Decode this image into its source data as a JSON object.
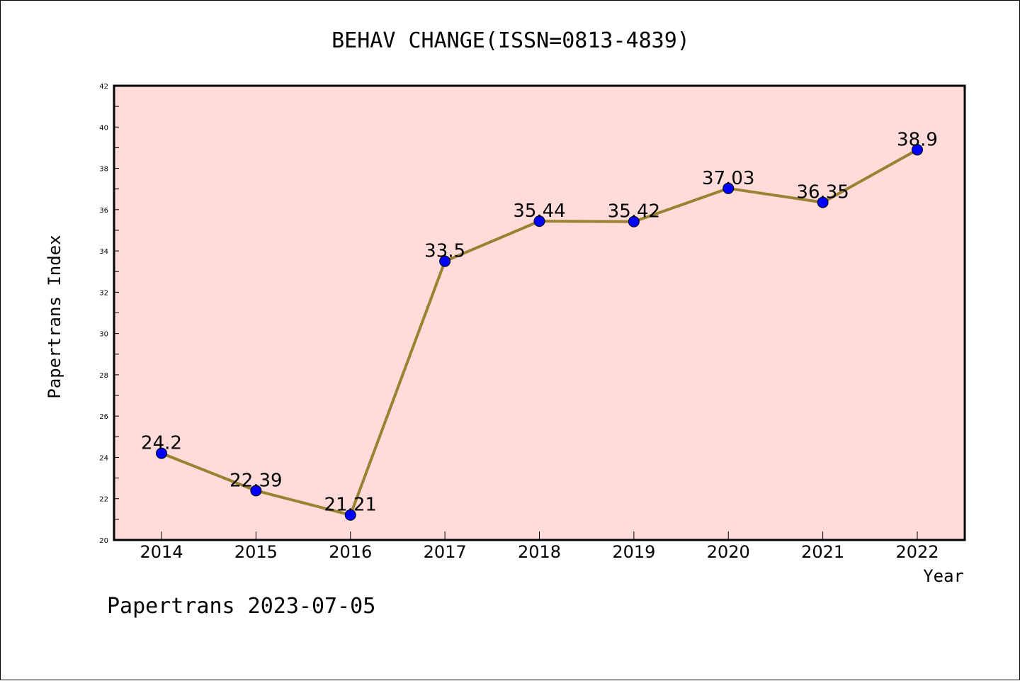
{
  "chart_data": {
    "type": "line",
    "title": "BEHAV CHANGE(ISSN=0813-4839)",
    "xlabel": "Year",
    "ylabel": "Papertrans Index",
    "x": [
      "2014",
      "2015",
      "2016",
      "2017",
      "2018",
      "2019",
      "2020",
      "2021",
      "2022"
    ],
    "series": [
      {
        "values": [
          24.2,
          22.39,
          21.21,
          33.5,
          35.44,
          35.42,
          37.03,
          36.35,
          38.9
        ],
        "labels": [
          "24.2",
          "22.39",
          "21.21",
          "33.5",
          "35.44",
          "35.42",
          "37.03",
          "36.35",
          "38.9"
        ]
      }
    ],
    "ylim": [
      20,
      42
    ],
    "yticks": [
      "20",
      "22",
      "24",
      "26",
      "28",
      "30",
      "32",
      "34",
      "36",
      "38",
      "40",
      "42"
    ],
    "grid": false,
    "footer": "Papertrans 2023-07-05",
    "colors": {
      "plot_background": "#FFDCDA",
      "line": "#998333",
      "marker": "#0000FF"
    }
  }
}
